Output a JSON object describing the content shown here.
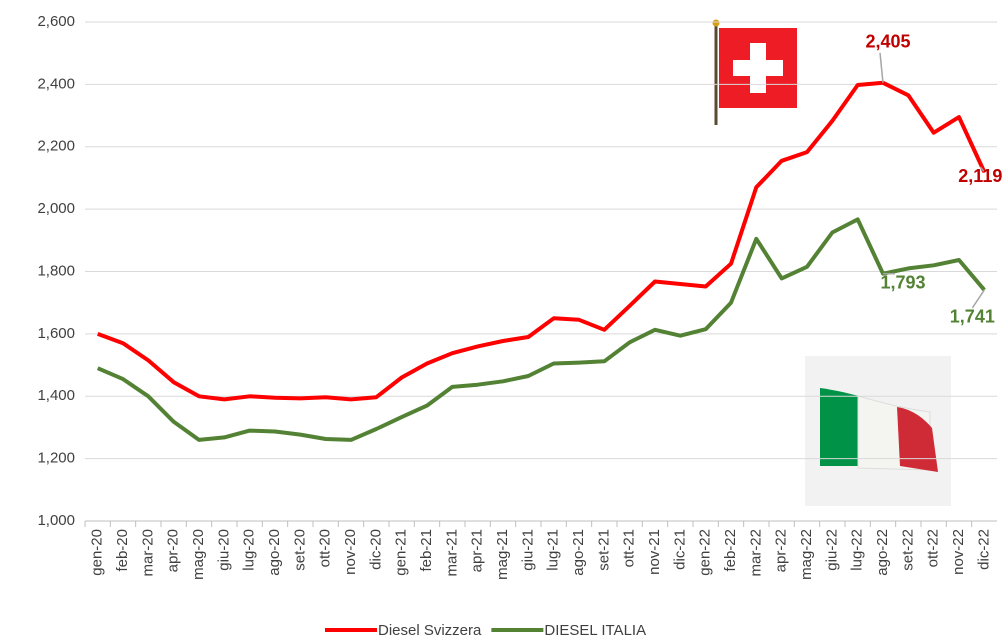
{
  "chart_data": {
    "type": "line",
    "categories": [
      "gen-20",
      "feb-20",
      "mar-20",
      "apr-20",
      "mag-20",
      "giu-20",
      "lug-20",
      "ago-20",
      "set-20",
      "ott-20",
      "nov-20",
      "dic-20",
      "gen-21",
      "feb-21",
      "mar-21",
      "apr-21",
      "mag-21",
      "giu-21",
      "lug-21",
      "ago-21",
      "set-21",
      "ott-21",
      "nov-21",
      "dic-21",
      "gen-22",
      "feb-22",
      "mar-22",
      "apr-22",
      "mag-22",
      "giu-22",
      "lug-22",
      "ago-22",
      "set-22",
      "ott-22",
      "nov-22",
      "dic-22"
    ],
    "series": [
      {
        "name": "Diesel Svizzera",
        "color": "#ff0000",
        "values": [
          1600,
          1570,
          1515,
          1445,
          1400,
          1390,
          1400,
          1395,
          1393,
          1397,
          1390,
          1397,
          1460,
          1505,
          1538,
          1560,
          1577,
          1590,
          1650,
          1645,
          1613,
          1690,
          1768,
          1760,
          1752,
          1825,
          2070,
          2155,
          2183,
          2283,
          2398,
          2405,
          2365,
          2245,
          2295,
          2119
        ],
        "value_labels": [
          null,
          null,
          null,
          null,
          null,
          null,
          null,
          null,
          null,
          null,
          null,
          null,
          null,
          null,
          null,
          null,
          null,
          null,
          null,
          null,
          null,
          null,
          null,
          null,
          null,
          null,
          null,
          null,
          null,
          null,
          null,
          "2,405",
          null,
          null,
          null,
          "2,119"
        ],
        "label_color": "#c00000"
      },
      {
        "name": "DIESEL ITALIA",
        "color": "#548235",
        "values": [
          1490,
          1455,
          1400,
          1318,
          1260,
          1268,
          1290,
          1287,
          1277,
          1263,
          1260,
          1295,
          1333,
          1370,
          1430,
          1437,
          1448,
          1465,
          1505,
          1508,
          1512,
          1573,
          1613,
          1594,
          1615,
          1700,
          1905,
          1778,
          1815,
          1925,
          1967,
          1793,
          1810,
          1820,
          1837,
          1741
        ],
        "value_labels": [
          null,
          null,
          null,
          null,
          null,
          null,
          null,
          null,
          null,
          null,
          null,
          null,
          null,
          null,
          null,
          null,
          null,
          null,
          null,
          null,
          null,
          null,
          null,
          null,
          null,
          null,
          null,
          null,
          null,
          null,
          null,
          "1,793",
          null,
          null,
          null,
          "1,741"
        ],
        "label_color": "#548235"
      }
    ],
    "ylim": [
      1000,
      2600
    ],
    "yticks": [
      {
        "value": 1000,
        "label": "1,000"
      },
      {
        "value": 1200,
        "label": "1,200"
      },
      {
        "value": 1400,
        "label": "1,400"
      },
      {
        "value": 1600,
        "label": "1,600"
      },
      {
        "value": 1800,
        "label": "1,800"
      },
      {
        "value": 2000,
        "label": "2,000"
      },
      {
        "value": 2200,
        "label": "2,200"
      },
      {
        "value": 2400,
        "label": "2,400"
      },
      {
        "value": 2600,
        "label": "2,600"
      }
    ],
    "grid": true,
    "legend": "bottom"
  }
}
